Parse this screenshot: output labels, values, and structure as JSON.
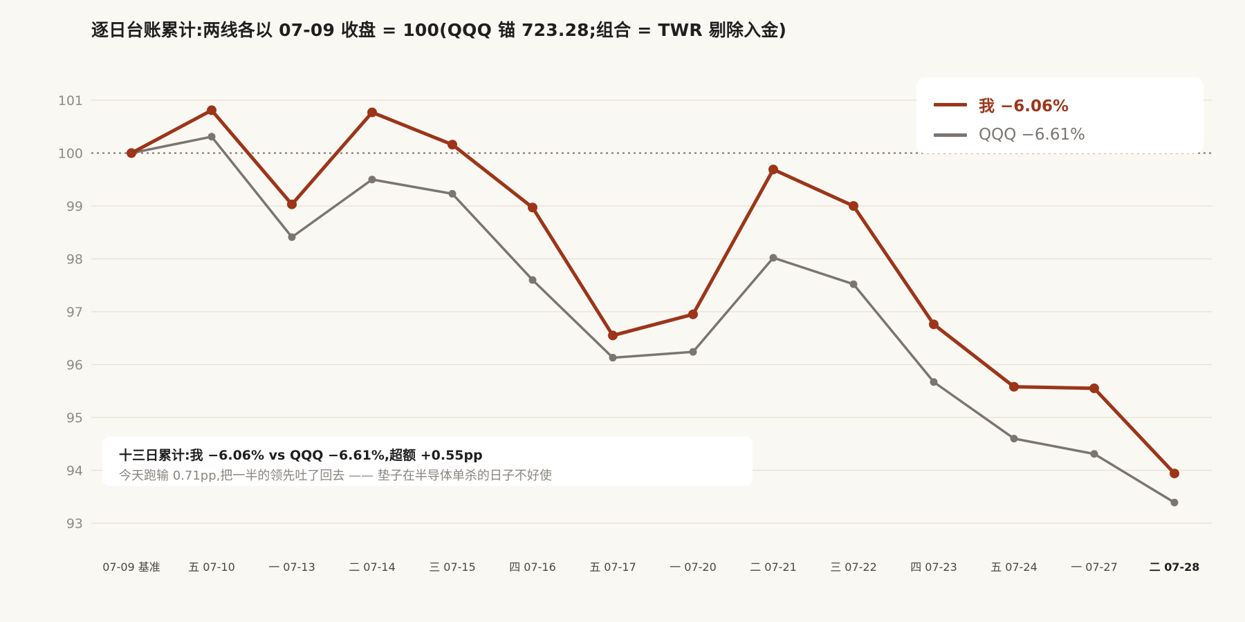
{
  "chart_data": {
    "type": "line",
    "title": "逐日台账累计:两线各以 07-09 收盘 = 100(QQQ 锚 723.28;组合 = TWR 剔除入金)",
    "categories": [
      "07-09 基准",
      "五 07-10",
      "一 07-13",
      "二 07-14",
      "三 07-15",
      "四 07-16",
      "五 07-17",
      "一 07-20",
      "二 07-21",
      "三 07-22",
      "四 07-23",
      "五 07-24",
      "一 07-27",
      "二 07-28"
    ],
    "series": [
      {
        "name": "我 −6.06%",
        "color": "#9c3519",
        "values": [
          100.0,
          100.81,
          99.03,
          100.77,
          100.16,
          98.97,
          96.55,
          96.95,
          99.69,
          99.0,
          96.76,
          95.58,
          95.55,
          93.94
        ]
      },
      {
        "name": "QQQ −6.61%",
        "color": "#7a7571",
        "values": [
          100.0,
          100.31,
          98.41,
          99.5,
          99.23,
          97.6,
          96.13,
          96.24,
          98.02,
          97.52,
          95.67,
          94.6,
          94.31,
          93.39
        ]
      }
    ],
    "ylim": [
      92.5,
      102
    ],
    "yticks": [
      93,
      94,
      95,
      96,
      97,
      98,
      99,
      100,
      101
    ],
    "baseline": 100,
    "xlabel": "",
    "ylabel": "",
    "grid": true,
    "legend_position": "top-right",
    "annotation": {
      "headline": "十三日累计:我 −6.06% vs QQQ −6.61%,超额 +0.55pp",
      "detail": "今天跑输 0.71pp,把一半的领先吐了回去 —— 垫子在半导体单杀的日子不好使"
    }
  }
}
